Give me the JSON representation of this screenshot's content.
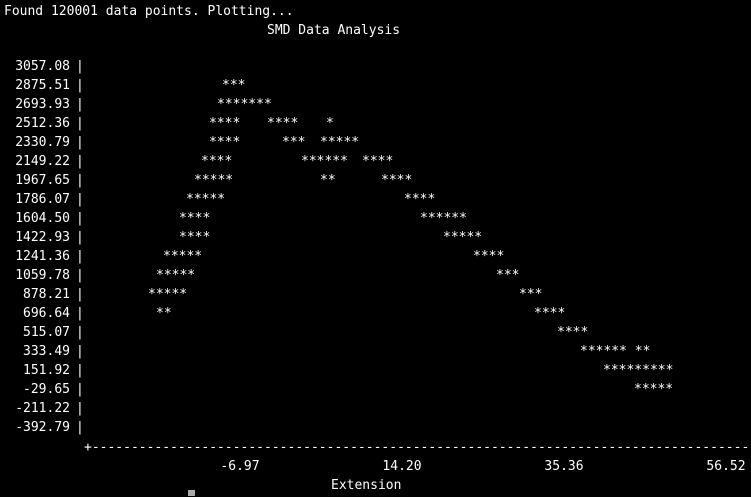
{
  "terminal": {
    "background": "#000000",
    "foreground": "#ffffff",
    "status_line": "Found 120001 data points. Plotting...",
    "cursor_color": "#aaaaaa"
  },
  "chart_data": {
    "type": "scatter",
    "rendering": "ascii",
    "title": "SMD Data Analysis",
    "xlabel": "Extension",
    "ylabel": "",
    "y_tick_labels": [
      "3057.08",
      "2875.51",
      "2693.93",
      "2512.36",
      "2330.79",
      "2149.22",
      "1967.65",
      "1786.07",
      "1604.50",
      "1422.93",
      "1241.36",
      "1059.78",
      "878.21",
      "696.64",
      "515.07",
      "333.49",
      "151.92",
      "-29.65",
      "-211.22",
      "-392.79"
    ],
    "x_tick_labels": [
      "-6.97",
      "14.20",
      "35.36",
      "56.52"
    ],
    "y_axis_glyph": "|",
    "x_axis_text": "+-----------------------------------------------------------------------------------------",
    "rows": [
      {
        "y": "3057.08",
        "marks": []
      },
      {
        "y": "2875.51",
        "marks": [
          {
            "x": -9.3,
            "text": "***"
          }
        ]
      },
      {
        "y": "2693.93",
        "marks": [
          {
            "x": -10.0,
            "text": "*******"
          }
        ]
      },
      {
        "y": "2512.36",
        "marks": [
          {
            "x": -11.0,
            "text": "****"
          },
          {
            "x": -3.5,
            "text": "****"
          },
          {
            "x": 4.3,
            "text": "*"
          }
        ]
      },
      {
        "y": "2330.79",
        "marks": [
          {
            "x": -11.0,
            "text": "****"
          },
          {
            "x": -1.5,
            "text": "***"
          },
          {
            "x": 3.5,
            "text": "*****"
          }
        ]
      },
      {
        "y": "2149.22",
        "marks": [
          {
            "x": -12.0,
            "text": "****"
          },
          {
            "x": 1.0,
            "text": "******"
          },
          {
            "x": 9.0,
            "text": "****"
          }
        ]
      },
      {
        "y": "1967.65",
        "marks": [
          {
            "x": -13.0,
            "text": "*****"
          },
          {
            "x": 3.5,
            "text": "**"
          },
          {
            "x": 11.5,
            "text": "****"
          }
        ]
      },
      {
        "y": "1786.07",
        "marks": [
          {
            "x": -14.0,
            "text": "*****"
          },
          {
            "x": 14.5,
            "text": "****"
          }
        ]
      },
      {
        "y": "1604.50",
        "marks": [
          {
            "x": -15.0,
            "text": "****"
          },
          {
            "x": 16.5,
            "text": "******"
          }
        ]
      },
      {
        "y": "1422.93",
        "marks": [
          {
            "x": -15.0,
            "text": "****"
          },
          {
            "x": 19.5,
            "text": "*****"
          }
        ]
      },
      {
        "y": "1241.36",
        "marks": [
          {
            "x": -17.0,
            "text": "*****"
          },
          {
            "x": 23.5,
            "text": "****"
          }
        ]
      },
      {
        "y": "1059.78",
        "marks": [
          {
            "x": -18.0,
            "text": "*****"
          },
          {
            "x": 26.5,
            "text": "***"
          }
        ]
      },
      {
        "y": "878.21",
        "marks": [
          {
            "x": -19.0,
            "text": "*****"
          },
          {
            "x": 29.5,
            "text": "***"
          }
        ]
      },
      {
        "y": "696.64",
        "marks": [
          {
            "x": -18.0,
            "text": "**"
          },
          {
            "x": 31.5,
            "text": "****"
          }
        ]
      },
      {
        "y": "515.07",
        "marks": [
          {
            "x": 34.5,
            "text": "****"
          }
        ]
      },
      {
        "y": "333.49",
        "marks": [
          {
            "x": 37.5,
            "text": "****** **"
          }
        ]
      },
      {
        "y": "151.92",
        "marks": [
          {
            "x": 40.5,
            "text": "*********"
          }
        ]
      },
      {
        "y": "-29.65",
        "marks": [
          {
            "x": 44.5,
            "text": "*****"
          }
        ]
      },
      {
        "y": "-211.22",
        "marks": []
      },
      {
        "y": "-392.79",
        "marks": []
      }
    ],
    "x_range": [
      -22.2,
      57.5
    ],
    "y_range": [
      -392.79,
      3057.08
    ],
    "grid": false,
    "legend": "none"
  }
}
